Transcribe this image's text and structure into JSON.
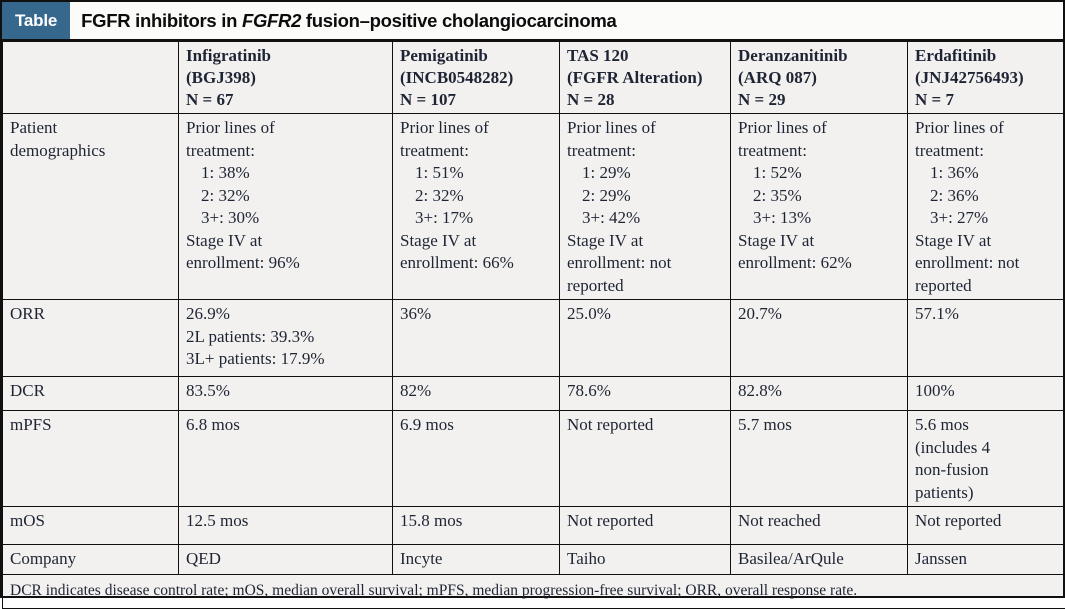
{
  "colors": {
    "accent": "#35688c",
    "cell_background": "#f2f1ef",
    "border": "#101010",
    "body_text": "#1e2433"
  },
  "title_bar": {
    "tag": "Table",
    "title_parts": [
      {
        "text": "FGFR inhibitors in "
      },
      {
        "text": "FGFR2",
        "italic": true
      },
      {
        "text": " fusion–positive cholangiocarcinoma"
      }
    ]
  },
  "table": {
    "column_headers": [
      {
        "lines": [
          "Infigratinib",
          "(BGJ398)",
          "N = 67"
        ]
      },
      {
        "lines": [
          "Pemigatinib",
          "(INCB0548282)",
          "N = 107"
        ]
      },
      {
        "lines": [
          "TAS 120",
          "(FGFR Alteration)",
          "N = 28"
        ]
      },
      {
        "lines": [
          "Deranzanitinib",
          "(ARQ 087)",
          "N = 29"
        ]
      },
      {
        "lines": [
          "Erdafitinib",
          "(JNJ42756493)",
          "N = 7"
        ]
      }
    ],
    "rows": [
      {
        "label_lines": [
          "Patient",
          "demographics"
        ],
        "cells": [
          {
            "lines": [
              {
                "t": "Prior lines of"
              },
              {
                "t": "treatment:"
              },
              {
                "t": "1: 38%",
                "ind": true
              },
              {
                "t": "2: 32%",
                "ind": true
              },
              {
                "t": "3+: 30%",
                "ind": true
              },
              {
                "t": "Stage IV at"
              },
              {
                "t": "enrollment: 96%"
              }
            ]
          },
          {
            "lines": [
              {
                "t": "Prior lines of"
              },
              {
                "t": "treatment:"
              },
              {
                "t": "1: 51%",
                "ind": true
              },
              {
                "t": "2: 32%",
                "ind": true
              },
              {
                "t": "3+: 17%",
                "ind": true
              },
              {
                "t": "Stage IV at"
              },
              {
                "t": "enrollment: 66%"
              }
            ]
          },
          {
            "lines": [
              {
                "t": "Prior lines of"
              },
              {
                "t": "treatment:"
              },
              {
                "t": "1: 29%",
                "ind": true
              },
              {
                "t": "2: 29%",
                "ind": true
              },
              {
                "t": "3+: 42%",
                "ind": true
              },
              {
                "t": "Stage IV at"
              },
              {
                "t": "enrollment: not"
              },
              {
                "t": "reported"
              }
            ]
          },
          {
            "lines": [
              {
                "t": "Prior lines of"
              },
              {
                "t": "treatment:"
              },
              {
                "t": "1: 52%",
                "ind": true
              },
              {
                "t": "2: 35%",
                "ind": true
              },
              {
                "t": "3+: 13%",
                "ind": true
              },
              {
                "t": "Stage IV at"
              },
              {
                "t": "enrollment: 62%"
              }
            ]
          },
          {
            "lines": [
              {
                "t": "Prior lines of"
              },
              {
                "t": "treatment:"
              },
              {
                "t": "1: 36%",
                "ind": true
              },
              {
                "t": "2: 36%",
                "ind": true
              },
              {
                "t": "3+: 27%",
                "ind": true
              },
              {
                "t": "Stage IV at"
              },
              {
                "t": "enrollment: not"
              },
              {
                "t": "reported"
              }
            ]
          }
        ]
      },
      {
        "label_lines": [
          "ORR"
        ],
        "cells": [
          {
            "lines": [
              {
                "t": "26.9%"
              },
              {
                "t": "2L patients: 39.3%"
              },
              {
                "t": "3L+ patients: 17.9%"
              }
            ]
          },
          {
            "lines": [
              {
                "t": "36%"
              }
            ]
          },
          {
            "lines": [
              {
                "t": "25.0%"
              }
            ]
          },
          {
            "lines": [
              {
                "t": "20.7%"
              }
            ]
          },
          {
            "lines": [
              {
                "t": "57.1%"
              }
            ]
          }
        ]
      },
      {
        "label_lines": [
          "DCR"
        ],
        "cells": [
          {
            "lines": [
              {
                "t": "83.5%"
              }
            ]
          },
          {
            "lines": [
              {
                "t": "82%"
              }
            ]
          },
          {
            "lines": [
              {
                "t": "78.6%"
              }
            ]
          },
          {
            "lines": [
              {
                "t": "82.8%"
              }
            ]
          },
          {
            "lines": [
              {
                "t": "100%"
              }
            ]
          }
        ]
      },
      {
        "label_lines": [
          "mPFS"
        ],
        "cells": [
          {
            "lines": [
              {
                "t": "6.8 mos"
              }
            ]
          },
          {
            "lines": [
              {
                "t": "6.9 mos"
              }
            ]
          },
          {
            "lines": [
              {
                "t": "Not reported"
              }
            ]
          },
          {
            "lines": [
              {
                "t": "5.7 mos"
              }
            ]
          },
          {
            "lines": [
              {
                "t": "5.6 mos"
              },
              {
                "t": "(includes 4"
              },
              {
                "t": "non-fusion"
              },
              {
                "t": "patients)"
              }
            ]
          }
        ]
      },
      {
        "label_lines": [
          "mOS"
        ],
        "cells": [
          {
            "lines": [
              {
                "t": "12.5 mos"
              }
            ]
          },
          {
            "lines": [
              {
                "t": "15.8 mos"
              }
            ]
          },
          {
            "lines": [
              {
                "t": "Not reported"
              }
            ]
          },
          {
            "lines": [
              {
                "t": "Not reached"
              }
            ]
          },
          {
            "lines": [
              {
                "t": "Not reported"
              }
            ]
          }
        ]
      },
      {
        "label_lines": [
          "Company"
        ],
        "cells": [
          {
            "lines": [
              {
                "t": "QED"
              }
            ]
          },
          {
            "lines": [
              {
                "t": "Incyte"
              }
            ]
          },
          {
            "lines": [
              {
                "t": "Taiho"
              }
            ]
          },
          {
            "lines": [
              {
                "t": "Basilea/ArQule"
              }
            ]
          },
          {
            "lines": [
              {
                "t": "Janssen"
              }
            ]
          }
        ]
      }
    ],
    "footnote": "DCR indicates disease control rate; mOS, median overall survival; mPFS, median progression-free survival; ORR, overall response rate."
  }
}
